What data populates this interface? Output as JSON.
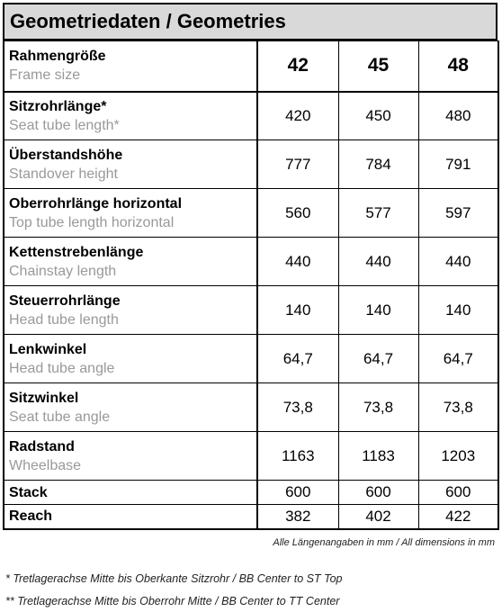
{
  "title": "Geometriedaten / Geometries",
  "header": {
    "label_de": "Rahmengröße",
    "label_en": "Frame size",
    "sizes": [
      "42",
      "45",
      "48"
    ]
  },
  "rows": [
    {
      "de": "Sitzrohrlänge*",
      "en": "Seat tube length*",
      "values": [
        "420",
        "450",
        "480"
      ]
    },
    {
      "de": "Überstandshöhe",
      "en": "Standover height",
      "values": [
        "777",
        "784",
        "791"
      ]
    },
    {
      "de": "Oberrohrlänge horizontal",
      "en": "Top tube length horizontal",
      "values": [
        "560",
        "577",
        "597"
      ]
    },
    {
      "de": "Kettenstrebenlänge",
      "en": "Chainstay length",
      "values": [
        "440",
        "440",
        "440"
      ]
    },
    {
      "de": "Steuerrohrlänge",
      "en": "Head tube length",
      "values": [
        "140",
        "140",
        "140"
      ]
    },
    {
      "de": "Lenkwinkel",
      "en": "Head tube angle",
      "values": [
        "64,7",
        "64,7",
        "64,7"
      ]
    },
    {
      "de": "Sitzwinkel",
      "en": "Seat tube angle",
      "values": [
        "73,8",
        "73,8",
        "73,8"
      ]
    },
    {
      "de": "Radstand",
      "en": "Wheelbase",
      "values": [
        "1163",
        "1183",
        "1203"
      ]
    },
    {
      "de": "Stack",
      "en": "",
      "values": [
        "600",
        "600",
        "600"
      ]
    },
    {
      "de": "Reach",
      "en": "",
      "values": [
        "382",
        "402",
        "422"
      ]
    }
  ],
  "unit_note": "Alle Längenangaben in mm / All dimensions in mm",
  "footnotes": [
    "* Tretlagerachse Mitte bis Oberkante Sitzrohr / BB Center to ST Top",
    "** Tretlagerachse Mitte bis Oberrohr Mitte / BB Center to TT Center"
  ]
}
